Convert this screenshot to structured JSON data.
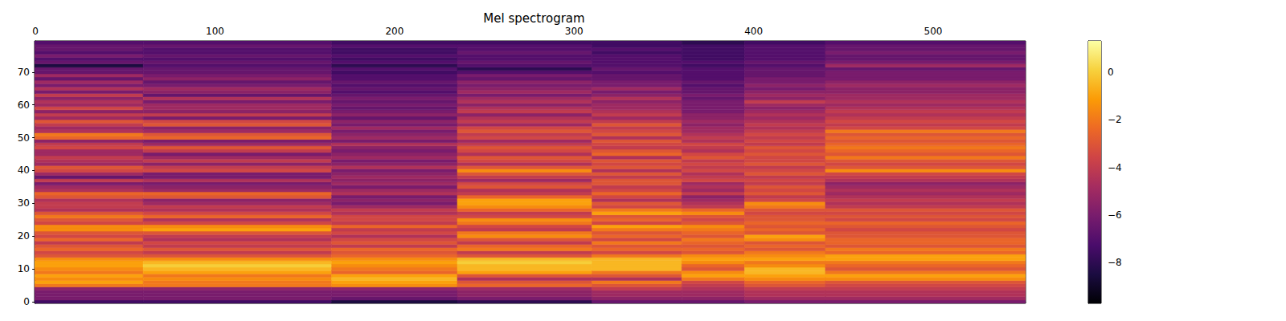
{
  "chart_data": {
    "type": "heatmap",
    "title": "Mel spectrogram",
    "xlim": [
      -0.5,
      551.5
    ],
    "ylim": [
      -0.5,
      79.5
    ],
    "xticks": [
      0,
      100,
      200,
      300,
      400,
      500
    ],
    "yticks": [
      0,
      10,
      20,
      30,
      40,
      50,
      60,
      70
    ],
    "x_edges": [
      -0.5,
      60,
      165,
      235,
      310,
      360,
      395,
      440,
      551.5
    ],
    "y_edges": [
      -0.5,
      0.5,
      1.5,
      2.5,
      3.5,
      4.5,
      5.5,
      6.5,
      7.5,
      8.5,
      9.5,
      10.5,
      11.5,
      12.5,
      13.5,
      14.5,
      15.5,
      16.5,
      17.5,
      18.5,
      19.5,
      20.5,
      21.5,
      22.5,
      23.5,
      24.5,
      25.5,
      26.5,
      27.5,
      28.5,
      29.5,
      30.5,
      31.5,
      32.5,
      33.5,
      34.5,
      35.5,
      36.5,
      37.5,
      38.5,
      39.5,
      40.5,
      41.5,
      42.5,
      43.5,
      44.5,
      45.5,
      46.5,
      47.5,
      48.5,
      49.5,
      50.5,
      51.5,
      52.5,
      53.5,
      54.5,
      55.5,
      56.5,
      57.5,
      58.5,
      59.5,
      60.5,
      61.5,
      62.5,
      63.5,
      64.5,
      65.5,
      66.5,
      67.5,
      68.5,
      69.5,
      70.5,
      71.5,
      72.5,
      73.5,
      74.5,
      75.5,
      76.5,
      77.5,
      78.5,
      79.5
    ],
    "values": [
      [
        -7.5,
        -6,
        -6,
        -6,
        -5.5,
        -2,
        -1,
        -1.5,
        -1,
        -2,
        -1.5,
        -1,
        -1,
        -1.5,
        -3,
        -3.5,
        -2.5,
        -3,
        -4,
        -2.5,
        -3.5,
        -3,
        -1.5,
        -1.5,
        -3.5,
        -3,
        -2,
        -3,
        -4.5,
        -4,
        -4,
        -4.5,
        -3,
        -2.5,
        -4.5,
        -5,
        -6,
        -4,
        -6.5,
        -5,
        -3.5,
        -3,
        -5,
        -4.5,
        -4,
        -5,
        -5,
        -3.5,
        -4,
        -5.5,
        -2.5,
        -2,
        -4.5,
        -5,
        -4,
        -3,
        -5,
        -4,
        -5.5,
        -3.5,
        -5,
        -4.5,
        -5.5,
        -4,
        -6,
        -4.5,
        -6,
        -5,
        -6.5,
        -5,
        -6.5,
        -6.5,
        -8.5,
        -6.5,
        -7,
        -6,
        -7,
        -6.5,
        -6.5,
        -7
      ],
      [
        -7.5,
        -6,
        -6,
        -6,
        -5.5,
        -2,
        -2,
        -1.5,
        -2,
        -1,
        -0.5,
        0,
        -0.5,
        -1.5,
        -3,
        -4,
        -3,
        -4,
        -3.5,
        -4.5,
        -4,
        -3,
        -1,
        -1.5,
        -3.5,
        -4.5,
        -2.5,
        -3.5,
        -4.5,
        -4,
        -5,
        -5.5,
        -3,
        -2.5,
        -5,
        -5.5,
        -6,
        -4.5,
        -6,
        -6,
        -3.5,
        -4,
        -5.5,
        -4,
        -5,
        -6,
        -4,
        -3,
        -5,
        -6,
        -2.5,
        -3,
        -5,
        -5.5,
        -3,
        -3.5,
        -6,
        -4,
        -5.5,
        -5,
        -5,
        -6,
        -4.5,
        -6.5,
        -5.5,
        -5,
        -6,
        -6.5,
        -5.5,
        -6,
        -6.5,
        -6.5,
        -7,
        -6.5,
        -7,
        -6.5,
        -7,
        -7,
        -6.5,
        -7
      ],
      [
        -8.5,
        -6.5,
        -6,
        -6,
        -5.5,
        -1.5,
        -1,
        -0.5,
        -1,
        -2.5,
        -2,
        -1.5,
        -1,
        -1.5,
        -2.5,
        -3,
        -2.5,
        -4,
        -3,
        -3.5,
        -4.5,
        -3.5,
        -4,
        -2.5,
        -4,
        -3.5,
        -3.5,
        -4.5,
        -4,
        -5,
        -6,
        -5.5,
        -6,
        -4.5,
        -5,
        -6,
        -5,
        -5.5,
        -5,
        -5.5,
        -6,
        -4.5,
        -5.5,
        -6,
        -5,
        -5.5,
        -6,
        -5.5,
        -4.5,
        -6,
        -5,
        -5.5,
        -6,
        -5,
        -6,
        -5.5,
        -6.5,
        -5.5,
        -6,
        -6.5,
        -6,
        -6.5,
        -6,
        -6.5,
        -7,
        -6.5,
        -7,
        -6.5,
        -7,
        -7,
        -7.5,
        -7,
        -8,
        -7,
        -7.5,
        -7,
        -7.5,
        -7.5,
        -7,
        -7.5
      ],
      [
        -8,
        -6,
        -5.5,
        -5.5,
        -5,
        -2.5,
        -3,
        -4.5,
        -3,
        -1,
        -0.5,
        -0.5,
        0,
        -0.5,
        -3,
        -4,
        -2,
        -2.5,
        -4,
        -3,
        -1.5,
        -2,
        -4,
        -3.5,
        -2,
        -1.5,
        -3.5,
        -4,
        -2.5,
        -1.5,
        -1,
        -1,
        -2.5,
        -4,
        -4.5,
        -3,
        -3.5,
        -5,
        -4,
        -3,
        -1.5,
        -3,
        -4.5,
        -3.5,
        -3,
        -4.5,
        -3.5,
        -3,
        -4,
        -5,
        -3.5,
        -4,
        -3,
        -3.5,
        -5,
        -4,
        -4.5,
        -5.5,
        -4,
        -4.5,
        -5.5,
        -4.5,
        -5,
        -6,
        -5,
        -5.5,
        -6,
        -5.5,
        -6.5,
        -6,
        -7,
        -8,
        -7,
        -6.5,
        -7,
        -7,
        -6.5,
        -7,
        -7,
        -7.5
      ],
      [
        -6.5,
        -5.5,
        -5,
        -5,
        -4,
        -3,
        -2,
        -4.5,
        -3,
        -2,
        -0.5,
        -0.5,
        -0.5,
        -0.5,
        -2,
        -3.5,
        -2.5,
        -3,
        -2,
        -3.5,
        -2.5,
        -3,
        -2,
        -1,
        -3.5,
        -2.5,
        -3,
        -1,
        -2,
        -3.5,
        -3,
        -4.5,
        -3.5,
        -2.5,
        -3.5,
        -4,
        -3,
        -3,
        -4,
        -3,
        -4.5,
        -3,
        -3.5,
        -3,
        -4.5,
        -2.5,
        -3,
        -4,
        -3.5,
        -3,
        -4.5,
        -3,
        -3.5,
        -4,
        -3,
        -4,
        -5,
        -4,
        -4.5,
        -5,
        -5,
        -5.5,
        -4.5,
        -5.5,
        -6,
        -5,
        -6,
        -6,
        -6.5,
        -6.5,
        -7,
        -6.5,
        -7,
        -7,
        -7,
        -7,
        -7.5,
        -7,
        -7.5,
        -7.5
      ],
      [
        -6.5,
        -5.5,
        -5,
        -5,
        -4.5,
        -4,
        -3.5,
        -2,
        -1,
        -1.5,
        -3,
        -2.5,
        -1.5,
        -1,
        -1.5,
        -3,
        -2.5,
        -3,
        -2.5,
        -2,
        -3,
        -2.5,
        -2,
        -1.5,
        -3,
        -3.5,
        -3,
        -1.5,
        -2.5,
        -4,
        -4.5,
        -5,
        -5.5,
        -4,
        -5,
        -4.5,
        -5,
        -3.5,
        -4,
        -4.5,
        -3.5,
        -4,
        -3.5,
        -4,
        -3,
        -3.5,
        -4.5,
        -4,
        -3.5,
        -4.5,
        -4,
        -4.5,
        -5,
        -5,
        -5.5,
        -5,
        -5.5,
        -5.5,
        -6,
        -6,
        -6,
        -6,
        -6.5,
        -6,
        -6.5,
        -6.5,
        -7,
        -6.5,
        -7,
        -7,
        -7,
        -7,
        -7.5,
        -7,
        -7.5,
        -7.5,
        -7.5,
        -7.5,
        -7.5,
        -8
      ],
      [
        -6,
        -5,
        -4.5,
        -4.5,
        -4,
        -3,
        -2.5,
        -1.5,
        -1,
        -0.5,
        -0.5,
        -1.5,
        -2,
        -1,
        -1.5,
        -2,
        -3,
        -2.5,
        -3,
        -1.5,
        -1,
        -3,
        -2.5,
        -3,
        -2.5,
        -3,
        -3,
        -3.5,
        -3,
        -2,
        -1.5,
        -3.5,
        -4,
        -3,
        -3.5,
        -3,
        -4,
        -3.5,
        -4,
        -3,
        -3.5,
        -4,
        -3,
        -3.5,
        -3.5,
        -3,
        -3.5,
        -3,
        -4,
        -3.5,
        -4,
        -3.5,
        -4,
        -4.5,
        -4,
        -4.5,
        -5,
        -4.5,
        -5,
        -5.5,
        -5,
        -4,
        -5.5,
        -5,
        -5.5,
        -6,
        -5.5,
        -6,
        -6,
        -6.5,
        -6.5,
        -6.5,
        -7,
        -6.5,
        -7,
        -7,
        -7,
        -7,
        -7,
        -7.5
      ],
      [
        -6,
        -5,
        -4.5,
        -4.5,
        -4,
        -3.5,
        -3,
        -1.5,
        -1,
        -2,
        -3,
        -2.5,
        -2,
        -1,
        -1,
        -2.5,
        -2,
        -3,
        -2.5,
        -2.5,
        -3,
        -3,
        -3.5,
        -3,
        -2.5,
        -3.5,
        -3,
        -3.5,
        -3,
        -4,
        -4.5,
        -4,
        -4.5,
        -5,
        -4.5,
        -5,
        -5.5,
        -4.5,
        -4,
        -3.5,
        -1.5,
        -3,
        -3.5,
        -3,
        -2,
        -3,
        -2.5,
        -2,
        -2.5,
        -3,
        -2.5,
        -3,
        -2,
        -3.5,
        -4,
        -3.5,
        -4,
        -4.5,
        -4,
        -4.5,
        -5,
        -4.5,
        -5,
        -5,
        -5.5,
        -5.5,
        -5,
        -5.5,
        -6,
        -6,
        -6,
        -6.5,
        -5,
        -6,
        -6.5,
        -6.5,
        -6,
        -6.5,
        -6.5,
        -7
      ]
    ],
    "colorbar": {
      "range": [
        -9.7,
        1.3
      ],
      "ticks": [
        {
          "value": -8,
          "label": "−8"
        },
        {
          "value": -6,
          "label": "−6"
        },
        {
          "value": -4,
          "label": "−4"
        },
        {
          "value": -2,
          "label": "−2"
        },
        0
      ]
    }
  }
}
